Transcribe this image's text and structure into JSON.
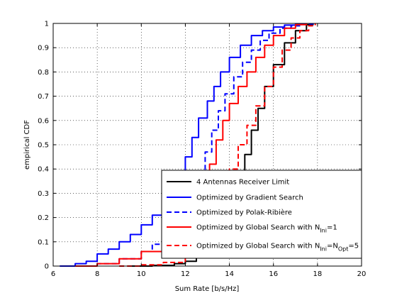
{
  "chart_data": {
    "type": "line",
    "xlabel": "Sum Rate [b/s/Hz]",
    "ylabel": "empirical CDF",
    "xlim": [
      6,
      20
    ],
    "ylim": [
      0,
      1
    ],
    "xticks": [
      6,
      8,
      10,
      12,
      14,
      16,
      18,
      20
    ],
    "yticks": [
      0,
      0.1,
      0.2,
      0.3,
      0.4,
      0.5,
      0.6,
      0.7,
      0.8,
      0.9,
      1
    ],
    "grid": true,
    "legend_position": "lower-right",
    "series": [
      {
        "name": "4 Antennas Receiver Limit",
        "color": "#000000",
        "dash": "solid",
        "x": [
          9.5,
          10.5,
          11.5,
          12,
          12.5,
          13,
          13.5,
          14,
          14.3,
          14.5,
          14.7,
          15,
          15.3,
          15.6,
          16,
          16.5,
          17,
          17.5,
          17.8
        ],
        "y": [
          0,
          0.003,
          0.01,
          0.02,
          0.04,
          0.07,
          0.12,
          0.2,
          0.28,
          0.38,
          0.46,
          0.56,
          0.65,
          0.74,
          0.83,
          0.92,
          0.97,
          0.995,
          1
        ]
      },
      {
        "name": "Optimized by Gradient Search",
        "color": "#0000ff",
        "dash": "solid",
        "x": [
          6.3,
          7,
          7.5,
          8,
          8.5,
          9,
          9.5,
          10,
          10.5,
          11,
          11.5,
          11.8,
          12,
          12.3,
          12.6,
          13,
          13.3,
          13.6,
          14,
          14.5,
          15,
          15.5,
          16,
          16.5,
          17,
          17.5
        ],
        "y": [
          0,
          0.01,
          0.02,
          0.05,
          0.07,
          0.1,
          0.13,
          0.17,
          0.21,
          0.26,
          0.32,
          0.38,
          0.45,
          0.53,
          0.61,
          0.68,
          0.74,
          0.8,
          0.86,
          0.91,
          0.95,
          0.97,
          0.985,
          0.993,
          0.998,
          1
        ]
      },
      {
        "name": "Optimized by Polak-Ribière",
        "color": "#0000ff",
        "dash": "dashed",
        "x": [
          7,
          8,
          9,
          10,
          10.5,
          11,
          11.5,
          12,
          12.3,
          12.6,
          12.9,
          13.2,
          13.5,
          13.8,
          14.2,
          14.6,
          15,
          15.4,
          15.8,
          16.3,
          16.8,
          17.3,
          17.8
        ],
        "y": [
          0,
          0.01,
          0.03,
          0.06,
          0.09,
          0.11,
          0.13,
          0.16,
          0.25,
          0.37,
          0.47,
          0.56,
          0.64,
          0.71,
          0.78,
          0.84,
          0.89,
          0.93,
          0.96,
          0.98,
          0.99,
          0.998,
          1
        ]
      },
      {
        "name": "Optimized by Global Search with N_Ini=1",
        "color": "#ff0000",
        "dash": "solid",
        "x": [
          7,
          8,
          9,
          10,
          11,
          12,
          12.4,
          12.8,
          13.1,
          13.4,
          13.7,
          14,
          14.4,
          14.8,
          15.2,
          15.6,
          16,
          16.5,
          17,
          17.5
        ],
        "y": [
          0,
          0.01,
          0.03,
          0.06,
          0.1,
          0.13,
          0.18,
          0.3,
          0.42,
          0.52,
          0.6,
          0.67,
          0.74,
          0.8,
          0.86,
          0.91,
          0.95,
          0.98,
          0.995,
          1
        ]
      },
      {
        "name": "Optimized by Global Search with N_Ini=N_Opt=5",
        "color": "#ff0000",
        "dash": "dashed",
        "x": [
          9,
          10,
          11,
          12,
          12.5,
          13,
          13.3,
          13.6,
          14,
          14.4,
          14.8,
          15.2,
          15.6,
          16,
          16.4,
          16.8,
          17.2,
          17.6,
          17.9
        ],
        "y": [
          0,
          0.005,
          0.015,
          0.04,
          0.07,
          0.12,
          0.2,
          0.3,
          0.4,
          0.5,
          0.58,
          0.66,
          0.74,
          0.82,
          0.89,
          0.94,
          0.97,
          0.99,
          1
        ]
      }
    ]
  },
  "legend": {
    "entries": [
      {
        "main": "4 Antennas Receiver Limit",
        "sub": "",
        "mid": "",
        "sub2": "",
        "tail": ""
      },
      {
        "main": "Optimized by Gradient Search",
        "sub": "",
        "mid": "",
        "sub2": "",
        "tail": ""
      },
      {
        "main": "Optimized by Polak-Ribière",
        "sub": "",
        "mid": "",
        "sub2": "",
        "tail": ""
      },
      {
        "main": "Optimized by Global Search with N",
        "sub": "Ini",
        "mid": "=1",
        "sub2": "",
        "tail": ""
      },
      {
        "main": "Optimized by Global Search with N",
        "sub": "Ini",
        "mid": "=N",
        "sub2": "Opt",
        "tail": "=5"
      }
    ]
  }
}
